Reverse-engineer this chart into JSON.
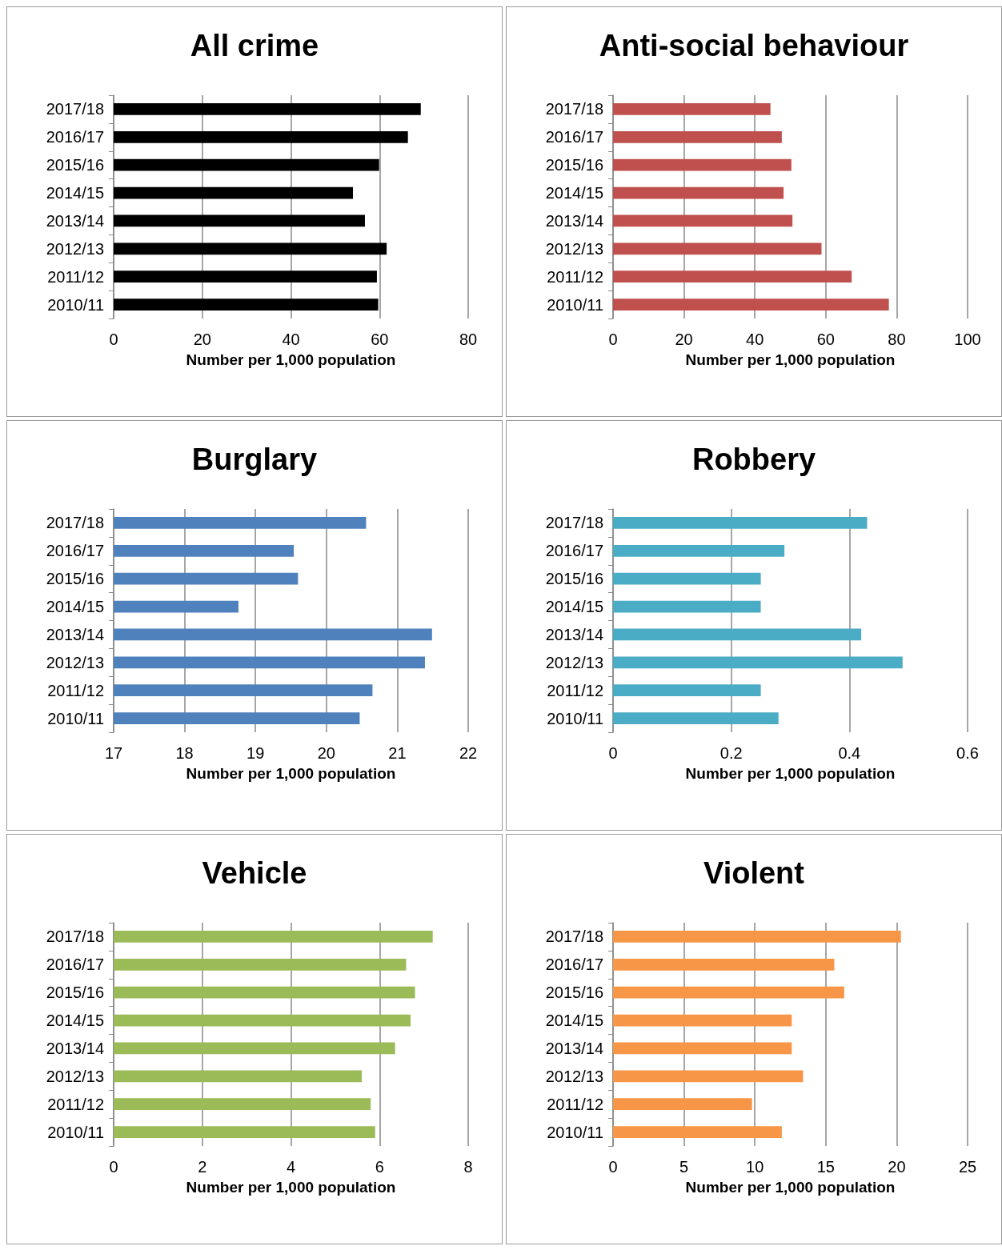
{
  "chart_data": [
    {
      "type": "bar",
      "orientation": "horizontal",
      "title": "All crime",
      "xlabel": "Number per 1,000 population",
      "categories": [
        "2017/18",
        "2016/17",
        "2015/16",
        "2014/15",
        "2013/14",
        "2012/13",
        "2011/12",
        "2010/11"
      ],
      "color": "#000000",
      "values": [
        69.3,
        66.4,
        59.9,
        54.0,
        56.7,
        61.6,
        59.4,
        59.7
      ],
      "xlim": [
        0,
        80
      ],
      "xticks": [
        0,
        20,
        40,
        60,
        80
      ],
      "grid": "x"
    },
    {
      "type": "bar",
      "orientation": "horizontal",
      "title": "Anti-social behaviour",
      "xlabel": "Number per 1,000 population",
      "categories": [
        "2017/18",
        "2016/17",
        "2015/16",
        "2014/15",
        "2013/14",
        "2012/13",
        "2011/12",
        "2010/11"
      ],
      "color": "#c0504d",
      "values": [
        44.4,
        47.6,
        50.3,
        48.1,
        50.6,
        58.8,
        67.3,
        77.8
      ],
      "xlim": [
        0,
        100
      ],
      "xticks": [
        0,
        20,
        40,
        60,
        80,
        100
      ],
      "grid": "x"
    },
    {
      "type": "bar",
      "orientation": "horizontal",
      "title": "Burglary",
      "xlabel": "Number per 1,000 population",
      "categories": [
        "2017/18",
        "2016/17",
        "2015/16",
        "2014/15",
        "2013/14",
        "2012/13",
        "2011/12",
        "2010/11"
      ],
      "color": "#4f81bd",
      "values": [
        20.56,
        19.54,
        19.6,
        18.76,
        21.49,
        21.39,
        20.65,
        20.47
      ],
      "xlim": [
        17,
        22
      ],
      "xticks": [
        17,
        18,
        19,
        20,
        21,
        22
      ],
      "grid": "x"
    },
    {
      "type": "bar",
      "orientation": "horizontal",
      "title": "Robbery",
      "xlabel": "Number per 1,000 population",
      "categories": [
        "2017/18",
        "2016/17",
        "2015/16",
        "2014/15",
        "2013/14",
        "2012/13",
        "2011/12",
        "2010/11"
      ],
      "color": "#4bacc6",
      "values": [
        0.43,
        0.29,
        0.25,
        0.25,
        0.42,
        0.49,
        0.25,
        0.28
      ],
      "xlim": [
        0,
        0.6
      ],
      "xticks": [
        0,
        0.2,
        0.4,
        0.6
      ],
      "grid": "x"
    },
    {
      "type": "bar",
      "orientation": "horizontal",
      "title": "Vehicle",
      "xlabel": "Number per 1,000 population",
      "categories": [
        "2017/18",
        "2016/17",
        "2015/16",
        "2014/15",
        "2013/14",
        "2012/13",
        "2011/12",
        "2010/11"
      ],
      "color": "#9bbb59",
      "values": [
        7.2,
        6.6,
        6.8,
        6.7,
        6.35,
        5.6,
        5.8,
        5.9
      ],
      "xlim": [
        0,
        8
      ],
      "xticks": [
        0,
        2,
        4,
        6,
        8
      ],
      "grid": "x"
    },
    {
      "type": "bar",
      "orientation": "horizontal",
      "title": "Violent",
      "xlabel": "Number per 1,000 population",
      "categories": [
        "2017/18",
        "2016/17",
        "2015/16",
        "2014/15",
        "2013/14",
        "2012/13",
        "2011/12",
        "2010/11"
      ],
      "color": "#f79646",
      "values": [
        20.3,
        15.6,
        16.3,
        12.6,
        12.6,
        13.4,
        9.8,
        11.9
      ],
      "xlim": [
        0,
        25
      ],
      "xticks": [
        0,
        5,
        10,
        15,
        20,
        25
      ],
      "grid": "x"
    }
  ]
}
